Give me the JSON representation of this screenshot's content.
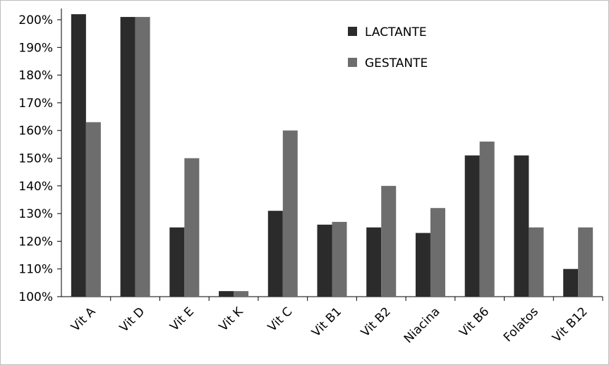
{
  "chart_data": {
    "type": "bar",
    "categories": [
      "Vit A",
      "Vit D",
      "Vit E",
      "Vit K",
      "Vit C",
      "Vit B1",
      "Vit B2",
      "Niacina",
      "Vit B6",
      "Folatos",
      "Vit B12"
    ],
    "series": [
      {
        "name": "LACTANTE",
        "color": "#2b2b2b",
        "values": [
          202,
          201,
          125,
          102,
          131,
          126,
          125,
          123,
          151,
          151,
          110
        ]
      },
      {
        "name": "GESTANTE",
        "color": "#6d6d6d",
        "values": [
          163,
          201,
          150,
          102,
          160,
          127,
          140,
          132,
          156,
          125,
          125
        ]
      }
    ],
    "ylim": [
      100,
      200
    ],
    "yticks": [
      "100%",
      "110%",
      "120%",
      "130%",
      "140%",
      "150%",
      "160%",
      "170%",
      "180%",
      "190%",
      "200%"
    ],
    "ytick_values": [
      100,
      110,
      120,
      130,
      140,
      150,
      160,
      170,
      180,
      190,
      200
    ],
    "grid": false,
    "legend_position": "top-right"
  }
}
